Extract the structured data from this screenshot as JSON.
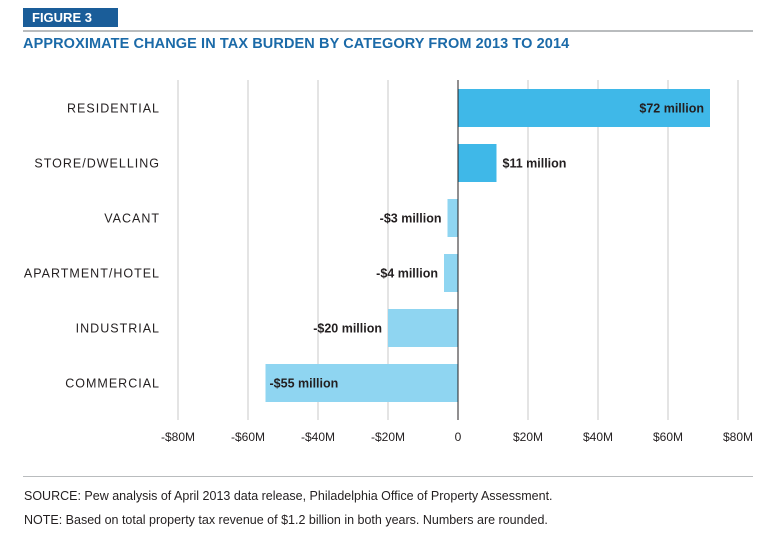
{
  "figure_label": "FIGURE 3",
  "source": "SOURCE: Pew analysis of April 2013 data release, Philadelphia Office of Property Assessment.",
  "note": "NOTE: Based on total property tax revenue of $1.2 billion in both years. Numbers are rounded.",
  "colors": {
    "positive": "#3fb8e8",
    "negative": "#8fd5f1",
    "badge": "#1a5d99",
    "title": "#1b6aa8"
  },
  "chart_data": {
    "type": "bar",
    "orientation": "horizontal",
    "title": "APPROXIMATE CHANGE IN TAX BURDEN BY CATEGORY FROM 2013 TO 2014",
    "categories": [
      "RESIDENTIAL",
      "STORE/DWELLING",
      "VACANT",
      "APARTMENT/HOTEL",
      "INDUSTRIAL",
      "COMMERCIAL"
    ],
    "values": [
      72,
      11,
      -3,
      -4,
      -20,
      -55
    ],
    "value_labels": [
      "$72 million",
      "$11 million",
      "-$3 million",
      "-$4 million",
      "-$20 million",
      "-$55 million"
    ],
    "units": "million USD",
    "xlim": [
      -80,
      80
    ],
    "xticks": [
      -80,
      -60,
      -40,
      -20,
      0,
      20,
      40,
      60,
      80
    ],
    "xtick_labels": [
      "-$80M",
      "-$60M",
      "-$40M",
      "-$20M",
      "0",
      "$20M",
      "$40M",
      "$60M",
      "$80M"
    ],
    "grid": true,
    "xlabel": "",
    "ylabel": ""
  }
}
